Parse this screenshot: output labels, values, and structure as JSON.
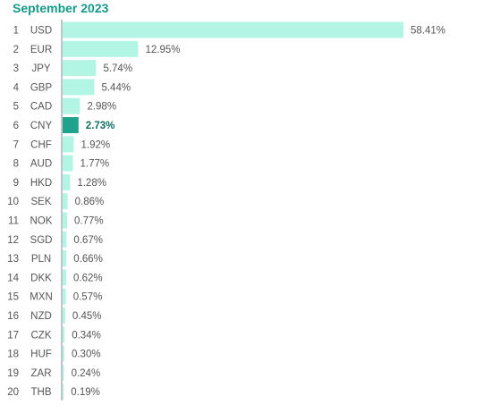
{
  "chart_data": {
    "type": "bar",
    "orientation": "horizontal",
    "title": "September 2023",
    "ranks": [
      "1",
      "2",
      "3",
      "4",
      "5",
      "6",
      "7",
      "8",
      "9",
      "10",
      "11",
      "12",
      "13",
      "14",
      "15",
      "16",
      "17",
      "18",
      "19",
      "20"
    ],
    "categories": [
      "USD",
      "EUR",
      "JPY",
      "GBP",
      "CAD",
      "CNY",
      "CHF",
      "AUD",
      "HKD",
      "SEK",
      "NOK",
      "SGD",
      "PLN",
      "DKK",
      "MXN",
      "NZD",
      "CZK",
      "HUF",
      "ZAR",
      "THB"
    ],
    "values": [
      58.41,
      12.95,
      5.74,
      5.44,
      2.98,
      2.73,
      1.92,
      1.77,
      1.28,
      0.86,
      0.77,
      0.67,
      0.66,
      0.62,
      0.57,
      0.45,
      0.34,
      0.3,
      0.24,
      0.19
    ],
    "value_labels": [
      "58.41%",
      "12.95%",
      "5.74%",
      "5.44%",
      "2.98%",
      "2.73%",
      "1.92%",
      "1.77%",
      "1.28%",
      "0.86%",
      "0.77%",
      "0.67%",
      "0.66%",
      "0.62%",
      "0.57%",
      "0.45%",
      "0.34%",
      "0.30%",
      "0.24%",
      "0.19%"
    ],
    "highlight_category": "CNY",
    "xlim": [
      0,
      58.41
    ],
    "grid": false,
    "colors": {
      "bar": "#b3f5e5",
      "highlight_bar": "#1fa38e",
      "axis": "#8a8a8a",
      "title": "#159a8a",
      "text": "#555555",
      "highlight_text": "#0f6e63"
    }
  }
}
